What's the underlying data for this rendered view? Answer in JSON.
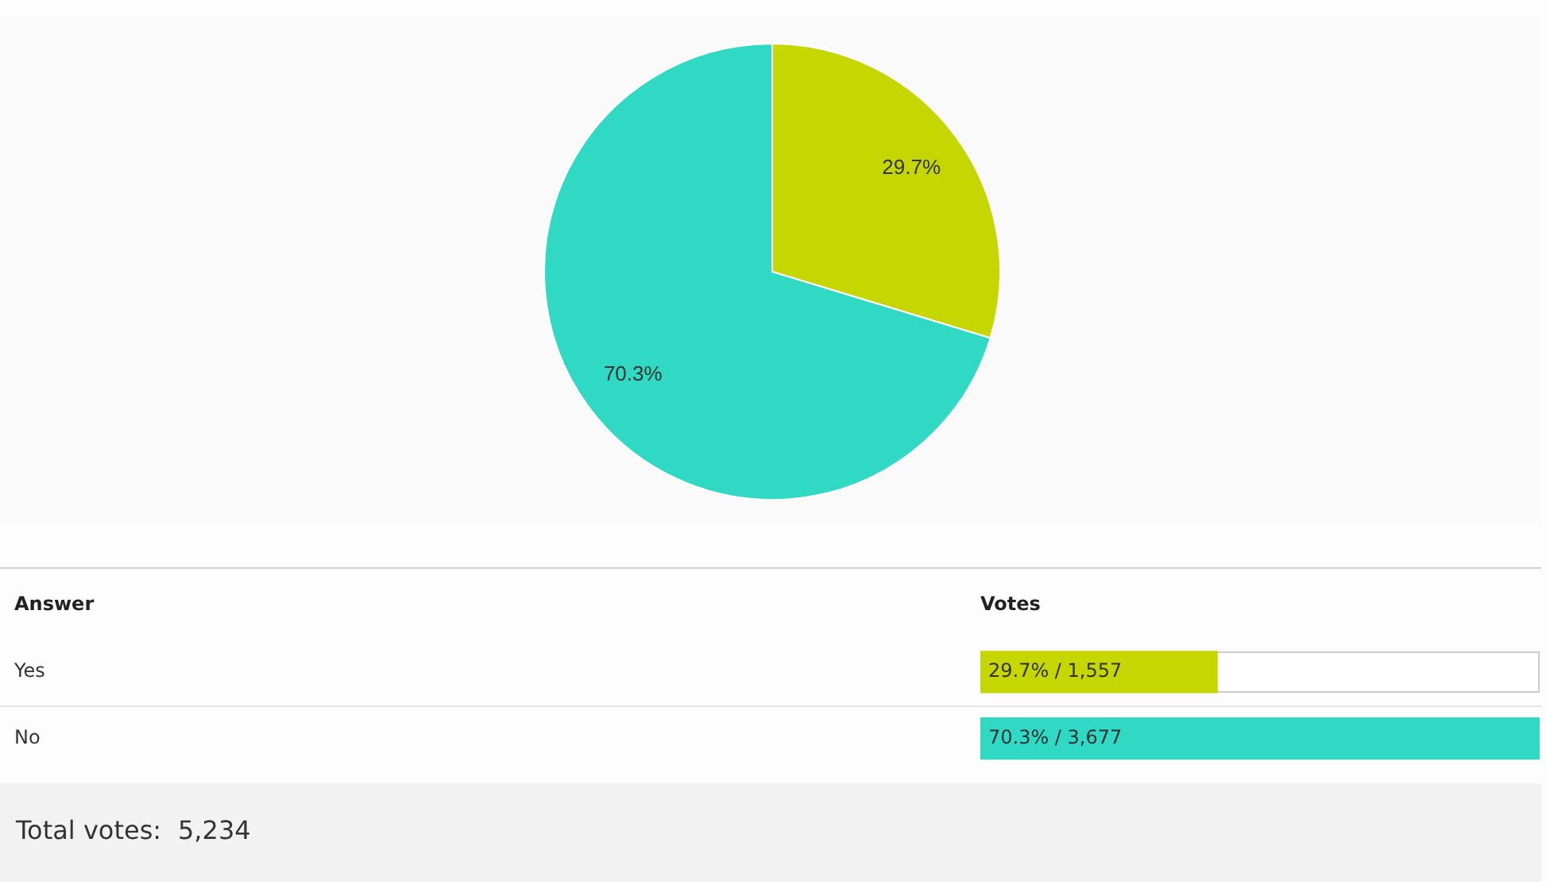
{
  "chart_data": [
    {
      "type": "pie",
      "categories": [
        null,
        null
      ],
      "values": [
        29.7,
        70.3
      ],
      "colors": [
        "#c5d600",
        "#30d9c4"
      ],
      "value_labels": [
        "29.7%",
        "70.3%"
      ]
    },
    {
      "type": "bar",
      "orientation": "horizontal",
      "categories": [
        "Yes",
        "No"
      ],
      "values": [
        1557,
        3677
      ],
      "colors": [
        "#c5d600",
        "#30d9c4"
      ],
      "value_labels": [
        "29.7% / 1,557",
        "70.3% / 3,677"
      ],
      "xlim": [
        0,
        3677
      ],
      "xlabel": "Votes",
      "ylabel": "Answer",
      "tick_labels": "y",
      "annotations": [
        "Total votes: 5,234"
      ]
    }
  ]
}
